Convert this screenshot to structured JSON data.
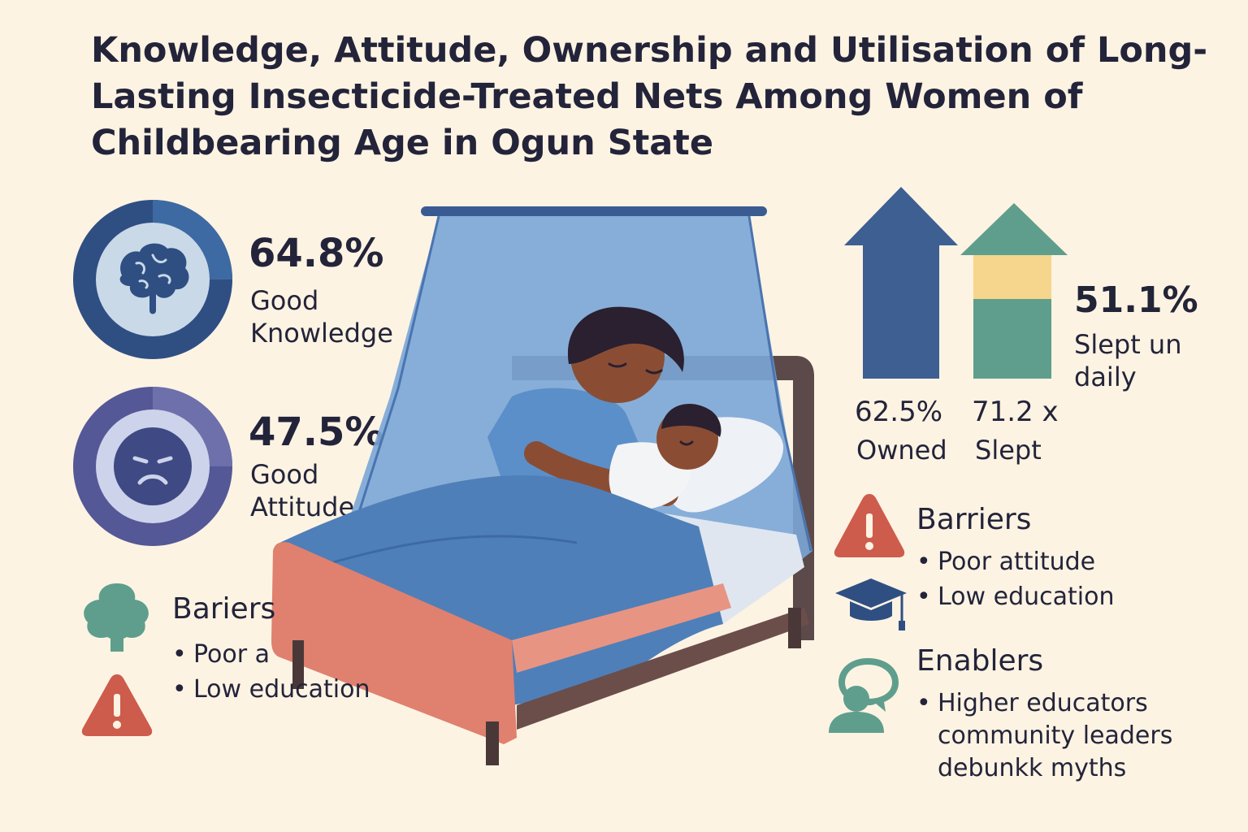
{
  "title": "Knowledge, Attitude, Ownership and Utilisation of Long-Lasting Insecticide-Treated Nets Among Women of Childbearing Age in Ogun State",
  "knowledge": {
    "value": "64.8%",
    "label_line1": "Good",
    "label_line2": "Knowledge",
    "icon": "brain-icon"
  },
  "attitude": {
    "value": "47.5%",
    "label_line1": "Good",
    "label_line2": "Attitude",
    "icon": "sad-face-icon"
  },
  "left_barriers": {
    "heading": "Bariers",
    "items": [
      "Poor a",
      "Low education"
    ],
    "icons": [
      "tree-icon",
      "warning-icon"
    ]
  },
  "ownership": {
    "owned_value": "62.5%",
    "owned_label": "Owned",
    "slept_value": "71.2 x",
    "slept_label": "Slept",
    "daily_value": "51.1%",
    "daily_line1": "Slept un",
    "daily_line2": "daily"
  },
  "right_barriers": {
    "heading": "Barriers",
    "items": [
      "Poor attitude",
      "Low education"
    ],
    "icons": [
      "warning-icon",
      "graduation-cap-icon"
    ]
  },
  "enablers": {
    "heading": "Enablers",
    "bullet": "Higher educators",
    "lines": [
      "community leaders",
      "debunkk myths"
    ],
    "icon": "chat-people-icon"
  },
  "colors": {
    "background": "#fdf3e3",
    "navy": "#3d5f92",
    "purple": "#5a5b9b",
    "teal": "#5f9e8c",
    "yellow": "#f6d58c",
    "coral": "#d0604f",
    "net_blue": "#6f9ccf"
  }
}
